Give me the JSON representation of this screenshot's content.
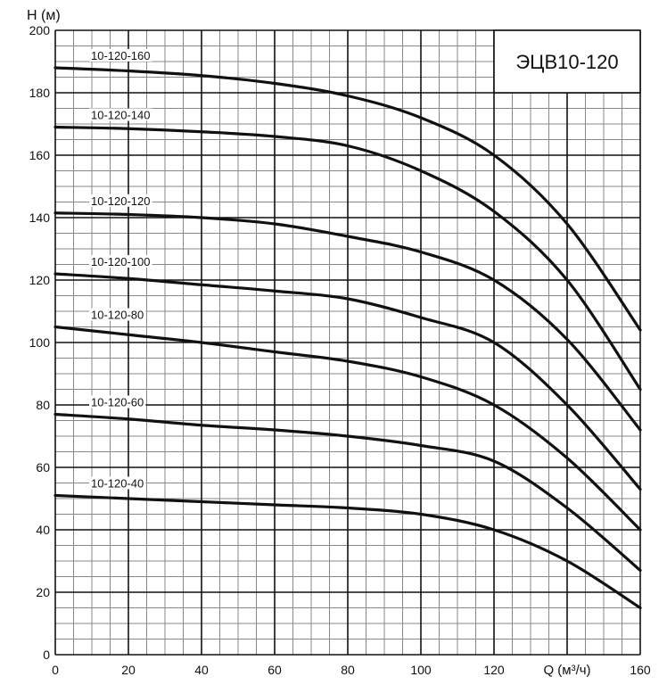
{
  "chart_data": {
    "type": "line",
    "title": "ЭЦВ10-120",
    "xlabel": "Q (м³/ч)",
    "ylabel": "H (м)",
    "xlim": [
      0,
      160
    ],
    "ylim": [
      0,
      200
    ],
    "x_ticks": [
      0,
      20,
      40,
      60,
      80,
      100,
      120,
      160
    ],
    "y_ticks": [
      0,
      20,
      40,
      60,
      80,
      100,
      120,
      140,
      160,
      180,
      200
    ],
    "x_minor_step": 5,
    "y_minor_step": 5,
    "grid": true,
    "x": [
      0,
      20,
      40,
      60,
      80,
      100,
      120,
      140,
      160
    ],
    "series": [
      {
        "name": "10-120-160",
        "values": [
          188,
          187,
          185.5,
          183,
          179,
          172,
          160,
          138,
          104
        ]
      },
      {
        "name": "10-120-140",
        "values": [
          169,
          168.5,
          167.5,
          166,
          163,
          155,
          142,
          120,
          85
        ]
      },
      {
        "name": "10-120-120",
        "values": [
          141.5,
          141,
          140,
          138,
          134,
          129,
          120,
          101,
          72
        ]
      },
      {
        "name": "10-120-100",
        "values": [
          122,
          120.5,
          118.5,
          116.5,
          114,
          108,
          100,
          80,
          53
        ]
      },
      {
        "name": "10-120-80",
        "values": [
          105,
          102.5,
          100,
          97,
          94,
          89,
          80,
          63,
          40
        ]
      },
      {
        "name": "10-120-60",
        "values": [
          77,
          75.5,
          73.5,
          72,
          70,
          67,
          62,
          47,
          27
        ]
      },
      {
        "name": "10-120-40",
        "values": [
          51,
          50,
          49,
          48,
          47,
          45,
          40,
          30,
          15
        ]
      }
    ],
    "colors": {
      "line": "#111111",
      "grid_major": "#111111",
      "grid_minor": "#888888"
    }
  }
}
